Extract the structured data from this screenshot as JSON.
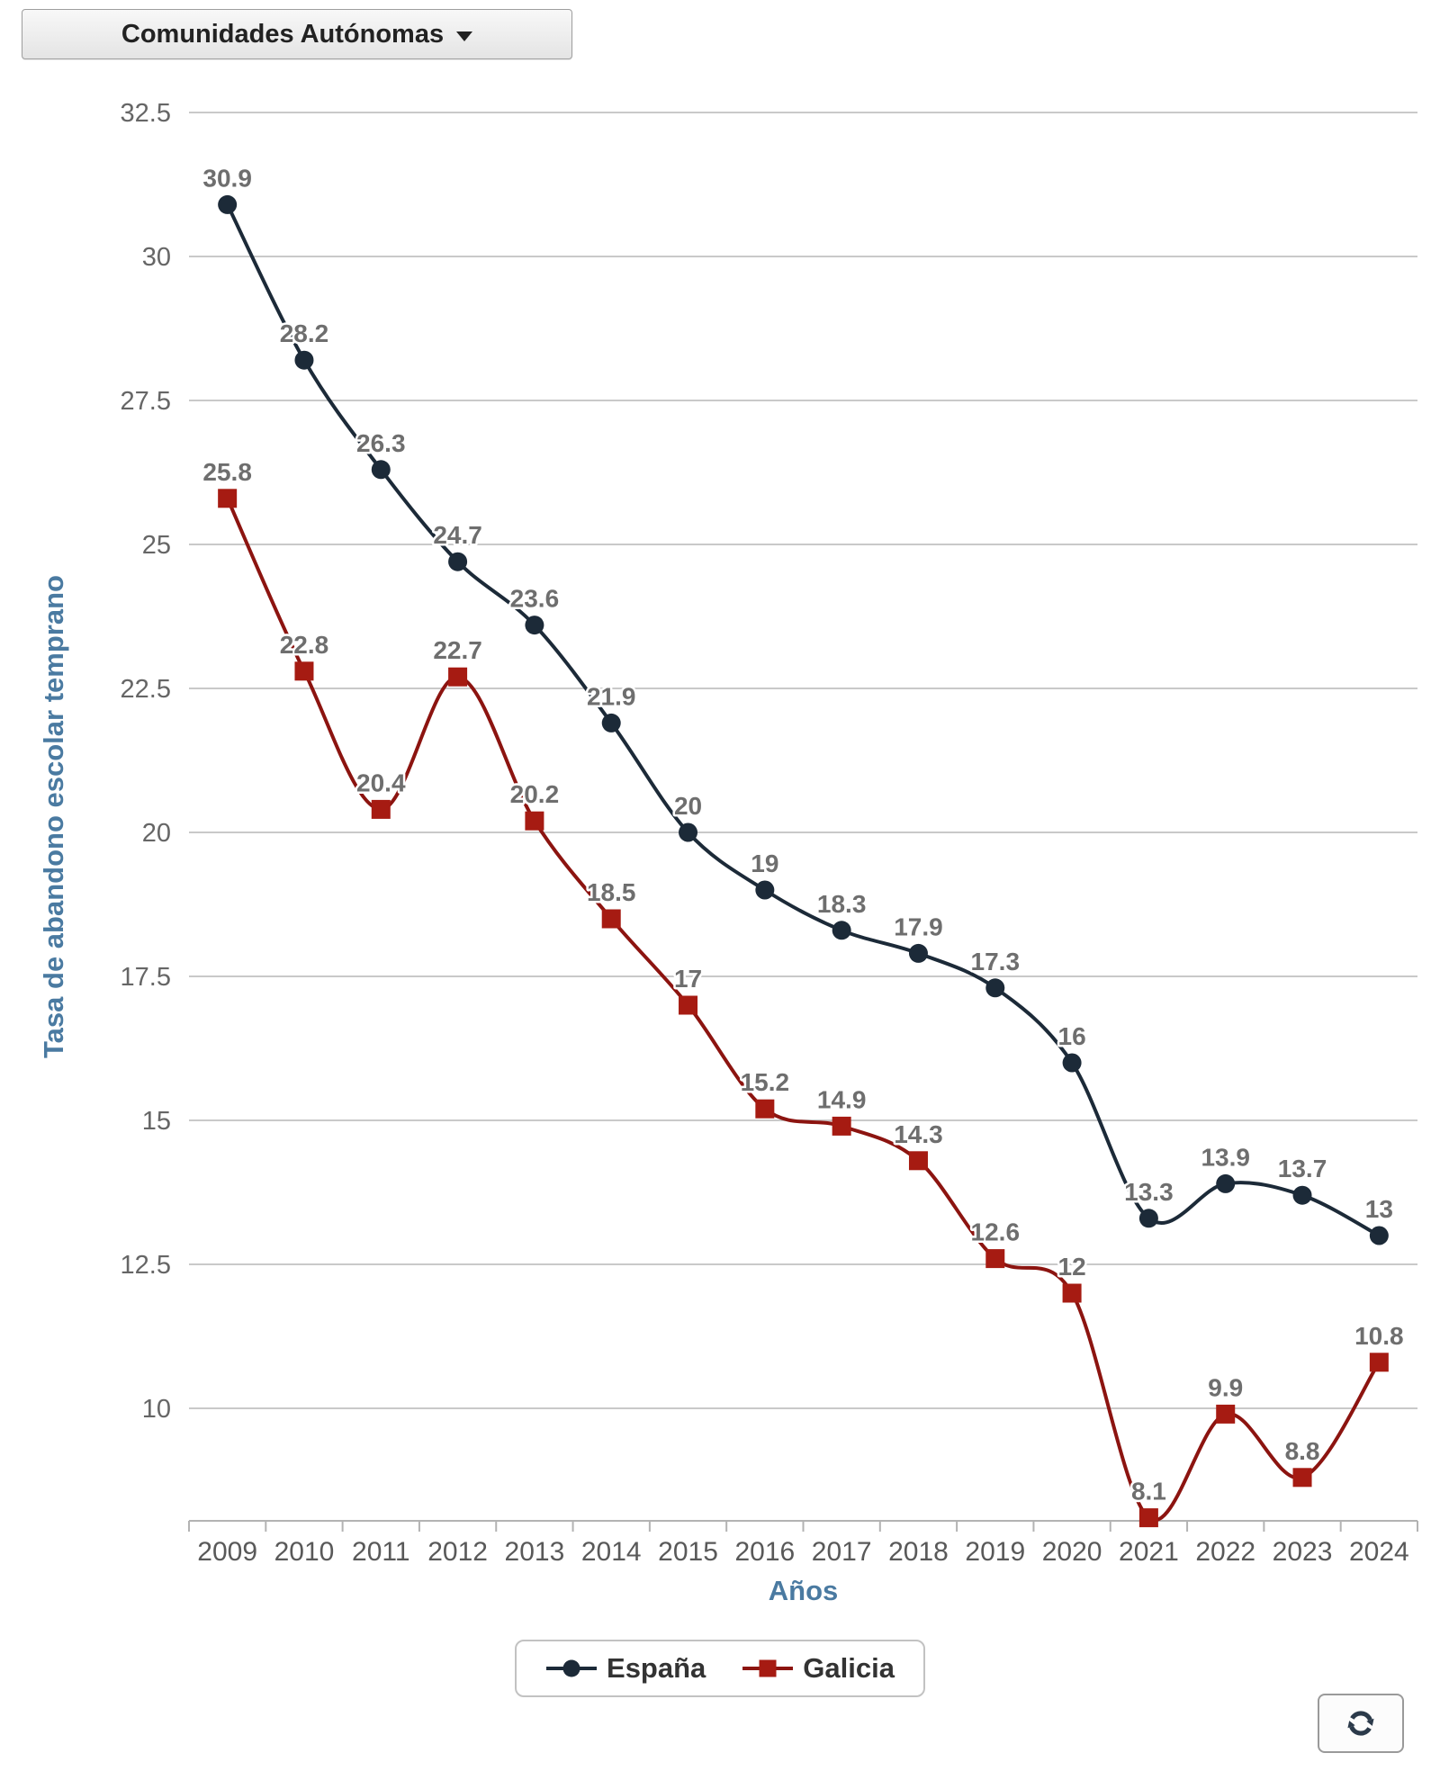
{
  "dropdown": {
    "label": "Comunidades Autónomas"
  },
  "chart_data": {
    "type": "line",
    "line_shape": "spline",
    "title": "",
    "xlabel": "Años",
    "ylabel": "Tasa de abandono escolar temprano",
    "categories": [
      "2009",
      "2010",
      "2011",
      "2012",
      "2013",
      "2014",
      "2015",
      "2016",
      "2017",
      "2018",
      "2019",
      "2020",
      "2021",
      "2022",
      "2023",
      "2024"
    ],
    "y_ticks": [
      32.5,
      30,
      27.5,
      25,
      22.5,
      20,
      17.5,
      15,
      12.5,
      10
    ],
    "ylim": [
      8.1,
      32.8
    ],
    "grid": true,
    "legend_position": "bottom",
    "series": [
      {
        "name": "España",
        "marker": "circle",
        "color": "#1c2a38",
        "values": [
          30.9,
          28.2,
          26.3,
          24.7,
          23.6,
          21.9,
          20,
          19,
          18.3,
          17.9,
          17.3,
          16,
          13.3,
          13.9,
          13.7,
          13
        ]
      },
      {
        "name": "Galicia",
        "marker": "square",
        "color": "#a61b12",
        "line_color": "#8c1410",
        "values": [
          25.8,
          22.8,
          20.4,
          22.7,
          20.2,
          18.5,
          17,
          15.2,
          14.9,
          14.3,
          12.6,
          12,
          8.1,
          9.9,
          8.8,
          10.8
        ]
      }
    ],
    "style": {
      "grid_color": "#c9c9c9",
      "axis_line_color": "#b3b3b3",
      "tick_text_color": "#666666",
      "data_label_color": "#6e6e6e",
      "axis_title_color": "#4a7aa1"
    }
  }
}
